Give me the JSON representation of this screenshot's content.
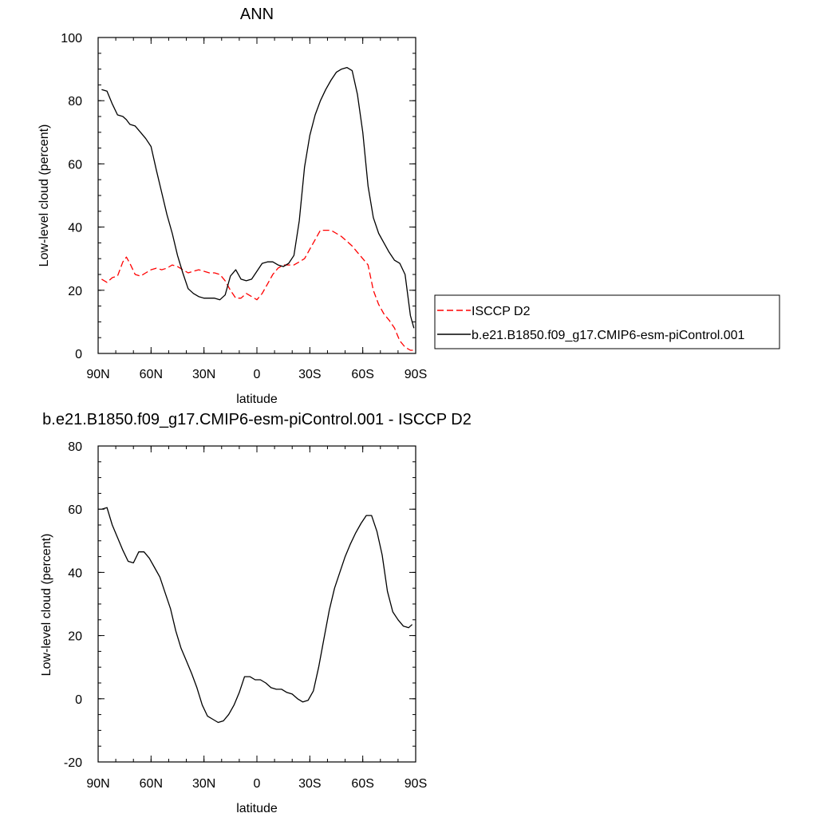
{
  "chart_data": [
    {
      "type": "line",
      "title": "ANN",
      "xlabel": "latitude",
      "ylabel": "Low-level cloud (percent)",
      "xlim": [
        90,
        -90
      ],
      "ylim": [
        0,
        100
      ],
      "xticks": [
        90,
        60,
        30,
        0,
        -30,
        -60,
        -90
      ],
      "xtick_labels": [
        "90N",
        "60N",
        "30N",
        "0",
        "30S",
        "60S",
        "90S"
      ],
      "yticks": [
        0,
        20,
        40,
        60,
        80,
        100
      ],
      "ytick_labels": [
        "0",
        "20",
        "40",
        "60",
        "80",
        "100"
      ],
      "legend_position": "right",
      "series": [
        {
          "name": "ISCCP D2",
          "color": "#ff0000",
          "dash": "dashed",
          "x": [
            88,
            85,
            82,
            79,
            76,
            74,
            72,
            69,
            66,
            63,
            60,
            57,
            54,
            51,
            48,
            45,
            42,
            39,
            36,
            33,
            30,
            27,
            24,
            21,
            18,
            15,
            12,
            9,
            6,
            3,
            0,
            -3,
            -6,
            -9,
            -12,
            -15,
            -18,
            -21,
            -24,
            -27,
            -30,
            -33,
            -36,
            -39,
            -42,
            -45,
            -48,
            -51,
            -54,
            -57,
            -60,
            -63,
            -66,
            -69,
            -72,
            -75,
            -78,
            -81,
            -84,
            -87,
            -89
          ],
          "y": [
            23.5,
            22.5,
            24,
            24.5,
            29,
            30.5,
            28.5,
            25,
            24.5,
            25.5,
            26.5,
            27,
            26.5,
            27,
            28,
            27.5,
            26.5,
            25.5,
            26,
            26.5,
            26,
            25.5,
            25.5,
            25,
            23,
            20,
            17.5,
            17.5,
            19,
            18,
            17,
            19,
            22,
            25,
            27,
            28,
            28,
            28,
            29,
            30,
            33,
            36,
            39,
            39,
            39,
            38,
            37,
            35.5,
            34,
            32,
            30,
            28,
            20,
            15.5,
            12.5,
            10.5,
            8,
            4,
            2,
            1,
            1
          ]
        },
        {
          "name": "b.e21.B1850.f09_g17.CMIP6-esm-piControl.001",
          "color": "#000000",
          "dash": "solid",
          "x": [
            88,
            85,
            82,
            79,
            76,
            74,
            72,
            69,
            66,
            63,
            60,
            57,
            54,
            51,
            48,
            45,
            42,
            39,
            36,
            33,
            30,
            27,
            24,
            21,
            18,
            15,
            12,
            9,
            6,
            3,
            0,
            -3,
            -6,
            -9,
            -12,
            -15,
            -18,
            -21,
            -24,
            -27,
            -30,
            -33,
            -36,
            -39,
            -42,
            -45,
            -48,
            -51,
            -54,
            -57,
            -60,
            -63,
            -66,
            -69,
            -72,
            -75,
            -78,
            -81,
            -84,
            -87,
            -89
          ],
          "y": [
            83.5,
            83,
            79,
            75.5,
            75,
            74,
            72.5,
            72,
            70,
            68,
            65.5,
            58,
            51,
            44,
            38,
            31,
            25.5,
            20.5,
            19,
            18,
            17.5,
            17.5,
            17.5,
            17,
            18.5,
            24.5,
            26.5,
            23.5,
            23,
            23.5,
            26,
            28.5,
            29,
            29,
            28,
            27.5,
            28.5,
            31,
            42,
            59,
            69,
            75.5,
            80,
            83.5,
            86.5,
            89,
            90,
            90.5,
            89.5,
            82,
            70,
            53,
            43,
            38,
            35,
            32,
            29.5,
            28.5,
            25,
            12,
            8
          ]
        }
      ]
    },
    {
      "type": "line",
      "title": "b.e21.B1850.f09_g17.CMIP6-esm-piControl.001 - ISCCP D2",
      "xlabel": "latitude",
      "ylabel": "Low-level cloud (percent)",
      "xlim": [
        90,
        -90
      ],
      "ylim": [
        -20,
        80
      ],
      "xticks": [
        90,
        60,
        30,
        0,
        -30,
        -60,
        -90
      ],
      "xtick_labels": [
        "90N",
        "60N",
        "30N",
        "0",
        "30S",
        "60S",
        "90S"
      ],
      "yticks": [
        -20,
        0,
        20,
        40,
        60,
        80
      ],
      "ytick_labels": [
        "-20",
        "0",
        "20",
        "40",
        "60",
        "80"
      ],
      "series": [
        {
          "color": "#000000",
          "dash": "solid",
          "x": [
            88,
            85,
            82,
            79,
            76,
            73,
            70,
            67,
            64,
            61,
            58,
            55,
            52,
            49,
            46,
            43,
            40,
            37,
            34,
            31,
            28,
            25,
            22,
            19,
            16,
            13,
            10,
            7,
            4,
            1,
            -2,
            -5,
            -8,
            -11,
            -14,
            -17,
            -20,
            -23,
            -26,
            -29,
            -32,
            -35,
            -38,
            -41,
            -44,
            -47,
            -50,
            -53,
            -56,
            -59,
            -62,
            -65,
            -68,
            -71,
            -74,
            -77,
            -80,
            -83,
            -86,
            -88
          ],
          "y": [
            60,
            60.5,
            55,
            51,
            47,
            43.5,
            43,
            46.5,
            46.5,
            44.5,
            41.5,
            38.5,
            33.5,
            28.5,
            21.5,
            16,
            12,
            8,
            3.5,
            -2,
            -5.5,
            -6.5,
            -7.5,
            -7,
            -5,
            -2,
            2,
            7,
            7,
            6,
            6,
            5,
            3.5,
            3,
            3,
            2,
            1.5,
            0,
            -1,
            -0.5,
            2.5,
            10,
            19,
            28,
            35,
            40,
            45,
            49,
            52.5,
            55.5,
            58,
            58,
            53,
            45.5,
            34,
            27.5,
            25,
            23,
            22.5,
            23.5
          ]
        }
      ]
    }
  ]
}
